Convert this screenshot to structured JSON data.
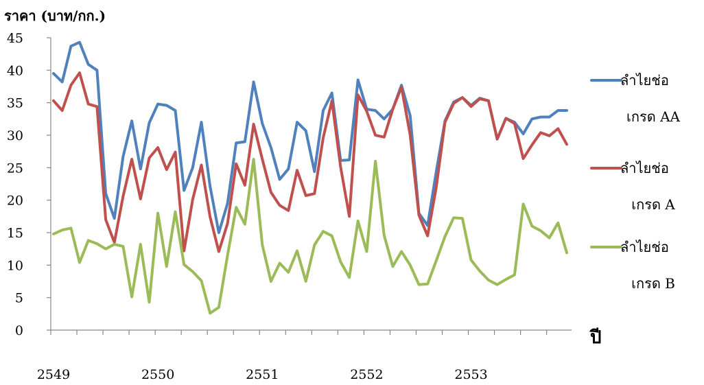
{
  "chart_data": {
    "type": "line",
    "ylabel": "ราคา (บาท/กก.)",
    "xlabel": "ปี",
    "ylim": [
      0,
      45
    ],
    "yticks": [
      0,
      5,
      10,
      15,
      20,
      25,
      30,
      35,
      40,
      45
    ],
    "x_tick_labels": [
      "2549",
      "2550",
      "2551",
      "2552",
      "2553"
    ],
    "grid": false,
    "legend_position": "right",
    "series": [
      {
        "name_lines": [
          "ลำไยช่อ",
          "เกรด AA"
        ],
        "color": "#4F81BD",
        "values": [
          39.5,
          38.2,
          43.7,
          44.3,
          40.9,
          40.0,
          21.0,
          17.2,
          26.7,
          32.2,
          24.8,
          31.9,
          34.8,
          34.6,
          33.8,
          21.5,
          25.0,
          32.0,
          22.1,
          15.0,
          19.5,
          28.8,
          29.0,
          38.2,
          31.8,
          28.1,
          23.2,
          24.8,
          32.0,
          30.7,
          24.4,
          33.8,
          36.5,
          26.1,
          26.2,
          38.5,
          34.0,
          33.8,
          32.5,
          34.0,
          37.7,
          33.0,
          18.0,
          16.1,
          24.4,
          32.2,
          35.1,
          35.8,
          34.6,
          35.7,
          35.3,
          29.4,
          32.6,
          32.0,
          30.2,
          32.5,
          32.8,
          32.8,
          33.8,
          33.8
        ]
      },
      {
        "name_lines": [
          "ลำไยช่อ",
          "เกรด A"
        ],
        "color": "#C0504D",
        "values": [
          35.3,
          33.8,
          37.7,
          39.6,
          34.8,
          34.4,
          17.0,
          13.5,
          20.6,
          26.3,
          20.2,
          26.5,
          28.1,
          24.7,
          27.4,
          12.2,
          20.1,
          25.4,
          17.4,
          12.1,
          16.4,
          25.6,
          22.3,
          31.7,
          26.3,
          21.2,
          19.2,
          18.4,
          24.6,
          20.7,
          21.0,
          29.6,
          35.3,
          25.1,
          17.5,
          36.2,
          33.7,
          30.0,
          29.7,
          34.0,
          37.4,
          30.0,
          17.7,
          14.5,
          22.0,
          32.0,
          34.9,
          35.8,
          34.4,
          35.6,
          35.3,
          29.4,
          32.6,
          31.8,
          26.4,
          28.5,
          30.4,
          29.9,
          31.0,
          28.6
        ]
      },
      {
        "name_lines": [
          "ลำไยช่อ",
          "เกรด B"
        ],
        "color": "#9BBB59",
        "values": [
          14.8,
          15.4,
          15.7,
          10.4,
          13.8,
          13.3,
          12.5,
          13.2,
          12.9,
          5.1,
          13.2,
          4.3,
          18.0,
          9.8,
          18.2,
          10.1,
          9.0,
          7.6,
          2.6,
          3.5,
          11.5,
          18.9,
          16.3,
          26.3,
          13.1,
          7.5,
          10.3,
          8.9,
          12.2,
          7.5,
          13.1,
          15.2,
          14.5,
          10.5,
          8.1,
          16.8,
          12.1,
          26.0,
          14.6,
          9.8,
          12.1,
          10.0,
          7.0,
          7.1,
          10.7,
          14.4,
          17.3,
          17.2,
          10.8,
          9.1,
          7.7,
          7.0,
          7.8,
          8.5,
          19.4,
          16.0,
          15.3,
          14.2,
          16.5,
          11.9
        ]
      }
    ]
  }
}
